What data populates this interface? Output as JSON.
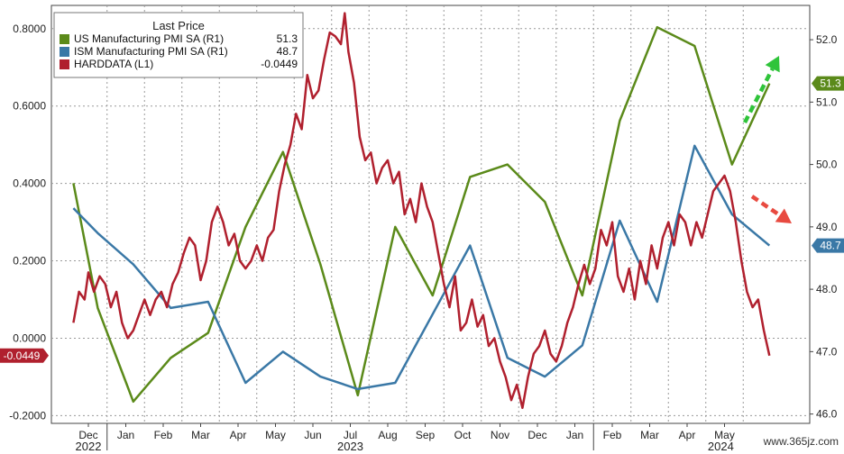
{
  "watermark": "www.365jz.com",
  "chart_data": {
    "type": "line",
    "legend": {
      "title": "Last Price",
      "placement": "top-left",
      "entries": [
        {
          "label": "US Manufacturing PMI SA  (R1)",
          "value": "51.3",
          "color": "#5b8a1a"
        },
        {
          "label": "ISM Manufacturing PMI SA  (R1)",
          "value": "48.7",
          "color": "#3a78a6"
        },
        {
          "label": "HARDDATA  (L1)",
          "value": "-0.0449",
          "color": "#b0202e"
        }
      ]
    },
    "left_axis": {
      "ylim": [
        -0.22,
        0.86
      ],
      "ticks": [
        "0.8000",
        "0.6000",
        "0.4000",
        "0.2000",
        "0.0000",
        "-0.2000"
      ],
      "tick_values": [
        0.8,
        0.6,
        0.4,
        0.2,
        0.0,
        -0.2
      ]
    },
    "right_axis": {
      "ylim": [
        45.85,
        52.55
      ],
      "ticks": [
        "52.0",
        "51.0",
        "50.0",
        "49.0",
        "48.0",
        "47.0",
        "46.0"
      ],
      "tick_values": [
        52,
        51,
        50,
        49,
        48,
        47,
        46
      ]
    },
    "x_months": [
      "Dec",
      "Jan",
      "Feb",
      "Mar",
      "Apr",
      "May",
      "Jun",
      "Jul",
      "Aug",
      "Sep",
      "Oct",
      "Nov",
      "Dec",
      "Jan",
      "Feb",
      "Mar",
      "Apr",
      "May"
    ],
    "x_years": [
      "2022",
      "2023",
      "2024"
    ],
    "grid": true,
    "series": [
      {
        "name": "US Manufacturing PMI SA",
        "axis": "right",
        "color": "#5b8a1a",
        "points": [
          [
            -0.4,
            49.7
          ],
          [
            0.25,
            47.7
          ],
          [
            1.2,
            46.2
          ],
          [
            2.2,
            46.9
          ],
          [
            3.2,
            47.3
          ],
          [
            4.2,
            49.0
          ],
          [
            5.2,
            50.2
          ],
          [
            6.2,
            48.4
          ],
          [
            7.2,
            46.3
          ],
          [
            8.2,
            49.0
          ],
          [
            9.2,
            47.9
          ],
          [
            10.2,
            49.8
          ],
          [
            11.2,
            50.0
          ],
          [
            12.2,
            49.4
          ],
          [
            13.2,
            47.9
          ],
          [
            14.2,
            50.7
          ],
          [
            15.2,
            52.2
          ],
          [
            16.2,
            51.9
          ],
          [
            17.2,
            50.0
          ],
          [
            18.2,
            51.3
          ]
        ],
        "last": "51.3"
      },
      {
        "name": "ISM Manufacturing PMI SA",
        "axis": "right",
        "color": "#3a78a6",
        "points": [
          [
            -0.4,
            49.3
          ],
          [
            0.25,
            48.9
          ],
          [
            1.2,
            48.4
          ],
          [
            2.2,
            47.7
          ],
          [
            3.2,
            47.8
          ],
          [
            4.2,
            46.5
          ],
          [
            5.2,
            47.0
          ],
          [
            6.2,
            46.6
          ],
          [
            7.2,
            46.4
          ],
          [
            8.2,
            46.5
          ],
          [
            9.2,
            47.6
          ],
          [
            10.2,
            48.7
          ],
          [
            11.2,
            46.9
          ],
          [
            12.2,
            46.6
          ],
          [
            13.2,
            47.1
          ],
          [
            14.2,
            49.1
          ],
          [
            15.2,
            47.8
          ],
          [
            16.2,
            50.3
          ],
          [
            17.2,
            49.2
          ],
          [
            18.2,
            48.7
          ]
        ],
        "last": "48.7"
      },
      {
        "name": "HARDDATA",
        "axis": "left",
        "color": "#b0202e",
        "points": [
          [
            -0.4,
            0.04
          ],
          [
            -0.25,
            0.12
          ],
          [
            -0.1,
            0.1
          ],
          [
            0.0,
            0.17
          ],
          [
            0.15,
            0.12
          ],
          [
            0.3,
            0.16
          ],
          [
            0.45,
            0.14
          ],
          [
            0.6,
            0.08
          ],
          [
            0.75,
            0.12
          ],
          [
            0.9,
            0.04
          ],
          [
            1.05,
            0.0
          ],
          [
            1.2,
            0.02
          ],
          [
            1.35,
            0.06
          ],
          [
            1.5,
            0.1
          ],
          [
            1.65,
            0.06
          ],
          [
            1.8,
            0.1
          ],
          [
            1.95,
            0.12
          ],
          [
            2.1,
            0.08
          ],
          [
            2.25,
            0.14
          ],
          [
            2.4,
            0.17
          ],
          [
            2.55,
            0.22
          ],
          [
            2.7,
            0.26
          ],
          [
            2.85,
            0.24
          ],
          [
            3.0,
            0.15
          ],
          [
            3.15,
            0.2
          ],
          [
            3.3,
            0.3
          ],
          [
            3.45,
            0.34
          ],
          [
            3.6,
            0.3
          ],
          [
            3.75,
            0.24
          ],
          [
            3.9,
            0.27
          ],
          [
            4.05,
            0.2
          ],
          [
            4.2,
            0.18
          ],
          [
            4.35,
            0.2
          ],
          [
            4.5,
            0.24
          ],
          [
            4.65,
            0.2
          ],
          [
            4.8,
            0.26
          ],
          [
            4.95,
            0.28
          ],
          [
            5.1,
            0.38
          ],
          [
            5.25,
            0.45
          ],
          [
            5.4,
            0.5
          ],
          [
            5.55,
            0.58
          ],
          [
            5.7,
            0.54
          ],
          [
            5.85,
            0.68
          ],
          [
            6.0,
            0.62
          ],
          [
            6.15,
            0.64
          ],
          [
            6.3,
            0.72
          ],
          [
            6.45,
            0.79
          ],
          [
            6.6,
            0.78
          ],
          [
            6.75,
            0.76
          ],
          [
            6.85,
            0.84
          ],
          [
            6.95,
            0.74
          ],
          [
            7.1,
            0.66
          ],
          [
            7.25,
            0.52
          ],
          [
            7.4,
            0.46
          ],
          [
            7.55,
            0.48
          ],
          [
            7.7,
            0.4
          ],
          [
            7.85,
            0.44
          ],
          [
            8.0,
            0.46
          ],
          [
            8.15,
            0.4
          ],
          [
            8.3,
            0.43
          ],
          [
            8.45,
            0.32
          ],
          [
            8.6,
            0.36
          ],
          [
            8.75,
            0.3
          ],
          [
            8.9,
            0.4
          ],
          [
            9.05,
            0.34
          ],
          [
            9.2,
            0.3
          ],
          [
            9.35,
            0.22
          ],
          [
            9.5,
            0.14
          ],
          [
            9.65,
            0.08
          ],
          [
            9.8,
            0.16
          ],
          [
            9.95,
            0.02
          ],
          [
            10.1,
            0.04
          ],
          [
            10.25,
            0.1
          ],
          [
            10.4,
            0.03
          ],
          [
            10.55,
            0.06
          ],
          [
            10.7,
            -0.02
          ],
          [
            10.85,
            0.0
          ],
          [
            11.0,
            -0.06
          ],
          [
            11.15,
            -0.1
          ],
          [
            11.3,
            -0.16
          ],
          [
            11.45,
            -0.12
          ],
          [
            11.6,
            -0.18
          ],
          [
            11.75,
            -0.1
          ],
          [
            11.9,
            -0.04
          ],
          [
            12.05,
            -0.02
          ],
          [
            12.2,
            0.02
          ],
          [
            12.35,
            -0.04
          ],
          [
            12.5,
            -0.06
          ],
          [
            12.65,
            -0.02
          ],
          [
            12.8,
            0.04
          ],
          [
            12.95,
            0.08
          ],
          [
            13.1,
            0.14
          ],
          [
            13.25,
            0.19
          ],
          [
            13.4,
            0.14
          ],
          [
            13.55,
            0.18
          ],
          [
            13.7,
            0.28
          ],
          [
            13.85,
            0.24
          ],
          [
            14.0,
            0.3
          ],
          [
            14.15,
            0.16
          ],
          [
            14.3,
            0.12
          ],
          [
            14.45,
            0.18
          ],
          [
            14.6,
            0.1
          ],
          [
            14.75,
            0.2
          ],
          [
            14.9,
            0.14
          ],
          [
            15.05,
            0.24
          ],
          [
            15.2,
            0.18
          ],
          [
            15.35,
            0.26
          ],
          [
            15.5,
            0.3
          ],
          [
            15.65,
            0.24
          ],
          [
            15.8,
            0.32
          ],
          [
            15.95,
            0.3
          ],
          [
            16.1,
            0.24
          ],
          [
            16.25,
            0.3
          ],
          [
            16.4,
            0.26
          ],
          [
            16.55,
            0.32
          ],
          [
            16.7,
            0.38
          ],
          [
            16.85,
            0.4
          ],
          [
            17.0,
            0.42
          ],
          [
            17.15,
            0.38
          ],
          [
            17.3,
            0.3
          ],
          [
            17.45,
            0.2
          ],
          [
            17.6,
            0.12
          ],
          [
            17.75,
            0.08
          ],
          [
            17.9,
            0.1
          ],
          [
            18.05,
            0.02
          ],
          [
            18.2,
            -0.0449
          ]
        ],
        "last": "-0.0449"
      }
    ],
    "annotations": [
      {
        "type": "arrow",
        "direction": "up",
        "color": "#2fc43a"
      },
      {
        "type": "arrow",
        "direction": "down",
        "color": "#e84a40"
      }
    ]
  }
}
